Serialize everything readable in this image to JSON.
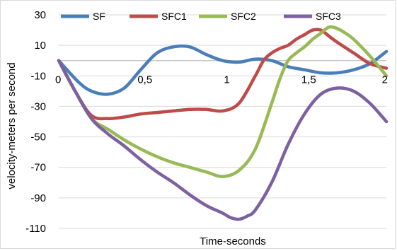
{
  "chart_data": {
    "type": "line",
    "title": "",
    "xlabel": "Time-seconds",
    "ylabel": "velocity-meters per second",
    "xlim": [
      0,
      2
    ],
    "ylim": [
      -110,
      30
    ],
    "x_ticks": [
      0,
      0.5,
      1,
      1.5,
      2
    ],
    "x_tick_labels": [
      "0",
      "0,5",
      "1",
      "1,5",
      "2"
    ],
    "y_ticks": [
      30,
      10,
      -10,
      -30,
      -50,
      -70,
      -90,
      -110
    ],
    "y_tick_labels": [
      "30",
      "10",
      "-10",
      "-30",
      "-50",
      "-70",
      "-90",
      "-110"
    ],
    "grid": "horizontal",
    "legend_position": "top",
    "series": [
      {
        "name": "SF",
        "color": "#4a7ebb",
        "x": [
          0,
          0.12,
          0.2,
          0.3,
          0.4,
          0.5,
          0.6,
          0.7,
          0.8,
          0.9,
          1.0,
          1.1,
          1.2,
          1.3,
          1.4,
          1.5,
          1.6,
          1.7,
          1.8,
          1.9,
          2.0
        ],
        "y": [
          0,
          -14,
          -20,
          -22,
          -18,
          -6,
          5,
          9,
          9,
          4,
          0,
          -1,
          1,
          0,
          -4,
          -6,
          -8,
          -8,
          -6,
          -2,
          6
        ]
      },
      {
        "name": "SFC1",
        "color": "#be4b48",
        "x": [
          0,
          0.1,
          0.2,
          0.3,
          0.4,
          0.5,
          0.6,
          0.7,
          0.8,
          0.9,
          1.0,
          1.1,
          1.2,
          1.25,
          1.3,
          1.35,
          1.4,
          1.45,
          1.5,
          1.55,
          1.6,
          1.65,
          1.7,
          1.8,
          1.9,
          2.0
        ],
        "y": [
          0,
          -20,
          -36,
          -38,
          -37,
          -35,
          -34,
          -33,
          -32,
          -32,
          -33,
          -28,
          -10,
          0,
          5,
          8,
          10,
          14,
          17,
          20,
          20,
          16,
          12,
          5,
          -2,
          -5
        ]
      },
      {
        "name": "SFC2",
        "color": "#98b954",
        "x": [
          0,
          0.1,
          0.2,
          0.3,
          0.4,
          0.5,
          0.6,
          0.7,
          0.8,
          0.9,
          1.0,
          1.1,
          1.2,
          1.3,
          1.35,
          1.4,
          1.45,
          1.5,
          1.55,
          1.6,
          1.65,
          1.7,
          1.75,
          1.8,
          1.9,
          2.0
        ],
        "y": [
          0,
          -20,
          -38,
          -45,
          -52,
          -58,
          -63,
          -67,
          -70,
          -73,
          -76,
          -72,
          -58,
          -28,
          -12,
          0,
          5,
          9,
          14,
          18,
          22,
          21,
          18,
          14,
          3,
          -10
        ]
      },
      {
        "name": "SFC3",
        "color": "#7d60a0",
        "x": [
          0,
          0.1,
          0.2,
          0.3,
          0.4,
          0.5,
          0.6,
          0.7,
          0.8,
          0.9,
          1.0,
          1.05,
          1.1,
          1.15,
          1.2,
          1.3,
          1.4,
          1.5,
          1.6,
          1.7,
          1.8,
          1.9,
          2.0
        ],
        "y": [
          0,
          -20,
          -38,
          -48,
          -56,
          -65,
          -73,
          -80,
          -88,
          -95,
          -100,
          -103,
          -104,
          -102,
          -98,
          -80,
          -55,
          -35,
          -22,
          -18,
          -20,
          -28,
          -40
        ]
      }
    ]
  }
}
